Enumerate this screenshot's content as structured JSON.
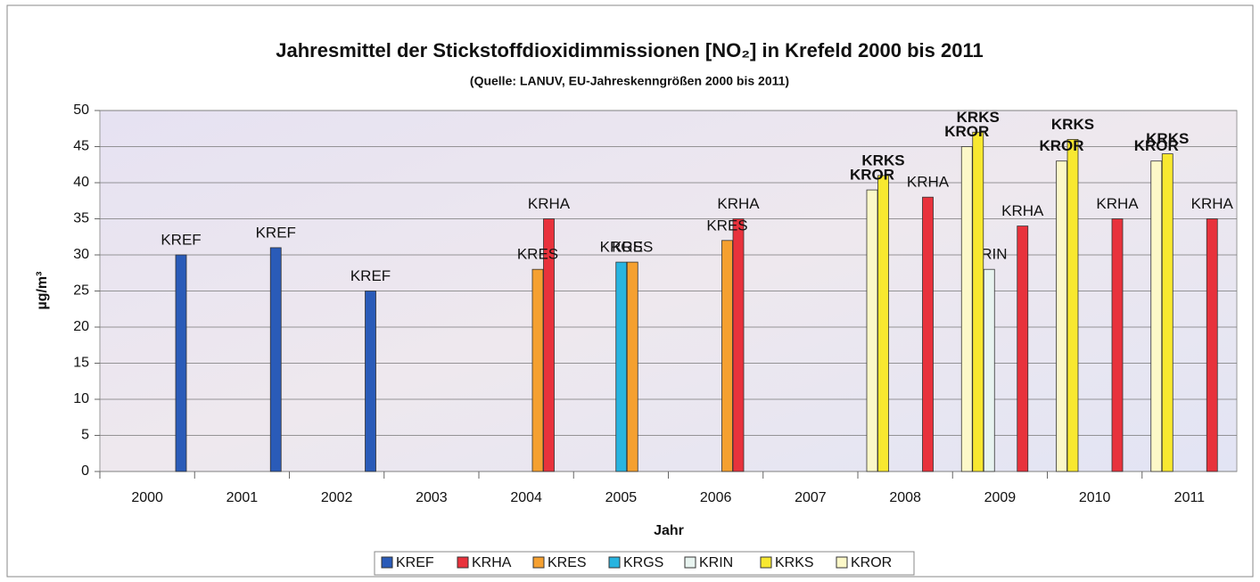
{
  "chart_data": {
    "type": "bar",
    "title": "Jahresmittel der Stickstoffdioxidimmissionen [NO₂] in Krefeld 2000 bis 2011",
    "subtitle": "(Quelle: LANUV, EU-Jahreskenngrößen 2000 bis 2011)",
    "x_label": "Jahr",
    "y_label": "µg/m³",
    "categories": [
      "2000",
      "2001",
      "2002",
      "2003",
      "2004",
      "2005",
      "2006",
      "2007",
      "2008",
      "2009",
      "2010",
      "2011"
    ],
    "series": [
      {
        "name": "KREF",
        "color": "#2a5bb8",
        "values": [
          30,
          31,
          25,
          null,
          null,
          null,
          null,
          null,
          null,
          null,
          null,
          null
        ]
      },
      {
        "name": "KRHA",
        "color": "#e8323c",
        "values": [
          null,
          null,
          null,
          null,
          35,
          null,
          35,
          null,
          38,
          34,
          35,
          35
        ]
      },
      {
        "name": "KRES",
        "color": "#f5a030",
        "values": [
          null,
          null,
          null,
          null,
          28,
          29,
          32,
          null,
          null,
          null,
          null,
          null
        ]
      },
      {
        "name": "KRGS",
        "color": "#28b4e0",
        "values": [
          null,
          null,
          null,
          null,
          null,
          29,
          null,
          null,
          null,
          null,
          null,
          null
        ]
      },
      {
        "name": "KRIN",
        "color": "#e8f4f0",
        "values": [
          null,
          null,
          null,
          null,
          null,
          null,
          null,
          null,
          null,
          28,
          null,
          null
        ]
      },
      {
        "name": "KRKS",
        "color": "#f8e830",
        "values": [
          null,
          null,
          null,
          null,
          null,
          null,
          null,
          null,
          41,
          47,
          46,
          44
        ]
      },
      {
        "name": "KROR",
        "color": "#fcf8c8",
        "values": [
          null,
          null,
          null,
          null,
          null,
          null,
          null,
          null,
          39,
          45,
          43,
          43
        ]
      }
    ],
    "ylim": [
      0,
      50
    ],
    "yticks": [
      0,
      5,
      10,
      15,
      20,
      25,
      30,
      35,
      40,
      45,
      50
    ],
    "grid": true,
    "legend": "bottom"
  }
}
